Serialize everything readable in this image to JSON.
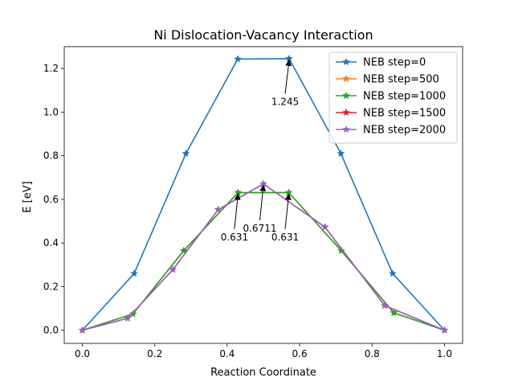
{
  "chart_data": {
    "type": "line",
    "title": "Ni Dislocation-Vacancy Interaction",
    "xlabel": "Reaction Coordinate",
    "ylabel": "E [eV]",
    "xlim": [
      -0.05,
      1.05
    ],
    "ylim": [
      -0.06,
      1.3
    ],
    "xticks": [
      0.0,
      0.2,
      0.4,
      0.6,
      0.8,
      1.0
    ],
    "xtick_labels": [
      "0.0",
      "0.2",
      "0.4",
      "0.6",
      "0.8",
      "1.0"
    ],
    "yticks": [
      0.0,
      0.2,
      0.4,
      0.6,
      0.8,
      1.0,
      1.2
    ],
    "ytick_labels": [
      "0.0",
      "0.2",
      "0.4",
      "0.6",
      "0.8",
      "1.0",
      "1.2"
    ],
    "grid": false,
    "legend_position": "top-right",
    "marker": "star",
    "series": [
      {
        "name": "NEB step=0",
        "color": "#1f77b4",
        "x": [
          0.0,
          0.143,
          0.286,
          0.429,
          0.571,
          0.714,
          0.857,
          1.0
        ],
        "y": [
          0.0,
          0.26,
          0.81,
          1.243,
          1.245,
          0.81,
          0.26,
          0.0
        ]
      },
      {
        "name": "NEB step=500",
        "color": "#ff7f0e",
        "x": [
          0.0,
          0.14,
          0.28,
          0.43,
          0.57,
          0.715,
          0.86,
          1.0
        ],
        "y": [
          0.0,
          0.075,
          0.365,
          0.631,
          0.631,
          0.365,
          0.08,
          0.0
        ]
      },
      {
        "name": "NEB step=1000",
        "color": "#2ca02c",
        "x": [
          0.0,
          0.14,
          0.28,
          0.43,
          0.57,
          0.715,
          0.86,
          1.0
        ],
        "y": [
          0.0,
          0.075,
          0.365,
          0.631,
          0.631,
          0.365,
          0.08,
          0.0
        ]
      },
      {
        "name": "NEB step=1500",
        "color": "#d62728",
        "x": [
          0.0,
          0.125,
          0.25,
          0.375,
          0.5,
          0.67,
          0.835,
          1.0
        ],
        "y": [
          0.0,
          0.055,
          0.278,
          0.553,
          0.6711,
          0.473,
          0.113,
          0.0
        ]
      },
      {
        "name": "NEB step=2000",
        "color": "#9467bd",
        "x": [
          0.0,
          0.125,
          0.25,
          0.375,
          0.5,
          0.67,
          0.835,
          1.0
        ],
        "y": [
          0.0,
          0.055,
          0.278,
          0.553,
          0.6711,
          0.473,
          0.113,
          0.0
        ]
      }
    ],
    "annotations": [
      {
        "text": "1.245",
        "x": 0.571,
        "y": 1.245,
        "text_x": 0.56,
        "text_y": 1.04
      },
      {
        "text": "0.631",
        "x": 0.43,
        "y": 0.631,
        "text_x": 0.42,
        "text_y": 0.42
      },
      {
        "text": "0.6711",
        "x": 0.5,
        "y": 0.6711,
        "text_x": 0.49,
        "text_y": 0.46
      },
      {
        "text": "0.631",
        "x": 0.57,
        "y": 0.631,
        "text_x": 0.56,
        "text_y": 0.42
      }
    ]
  }
}
